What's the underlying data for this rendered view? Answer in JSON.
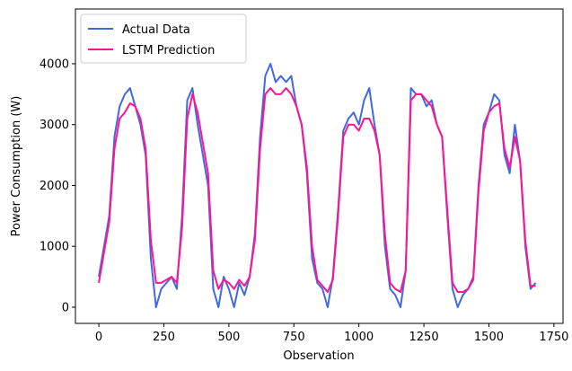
{
  "chart_data": {
    "type": "line",
    "xlabel": "Observation",
    "ylabel": "Power Consumption (W)",
    "x": [
      0,
      20,
      40,
      60,
      80,
      100,
      120,
      140,
      160,
      180,
      200,
      220,
      240,
      260,
      280,
      300,
      320,
      340,
      360,
      380,
      400,
      420,
      440,
      460,
      480,
      500,
      520,
      540,
      560,
      580,
      600,
      620,
      640,
      660,
      680,
      700,
      720,
      740,
      760,
      780,
      800,
      820,
      840,
      860,
      880,
      900,
      920,
      940,
      960,
      980,
      1000,
      1020,
      1040,
      1060,
      1080,
      1100,
      1120,
      1140,
      1160,
      1180,
      1200,
      1220,
      1240,
      1260,
      1280,
      1300,
      1320,
      1340,
      1360,
      1380,
      1400,
      1420,
      1440,
      1460,
      1480,
      1500,
      1520,
      1540,
      1560,
      1580,
      1600,
      1620,
      1640,
      1660,
      1680
    ],
    "series": [
      {
        "name": "Actual Data",
        "color": "#4169e1",
        "values": [
          500,
          1000,
          1500,
          2800,
          3300,
          3500,
          3600,
          3300,
          3000,
          2500,
          800,
          0,
          300,
          400,
          500,
          300,
          1500,
          3400,
          3600,
          3000,
          2500,
          2000,
          300,
          0,
          500,
          300,
          0,
          400,
          200,
          500,
          1200,
          2800,
          3800,
          4000,
          3700,
          3800,
          3700,
          3800,
          3300,
          3000,
          2200,
          800,
          400,
          300,
          0,
          500,
          1600,
          2900,
          3100,
          3200,
          3000,
          3400,
          3600,
          3000,
          2500,
          1000,
          300,
          200,
          0,
          600,
          3600,
          3500,
          3500,
          3300,
          3400,
          3000,
          2800,
          1500,
          300,
          0,
          200,
          300,
          500,
          2000,
          3000,
          3200,
          3500,
          3400,
          2500,
          2200,
          3000,
          2400,
          1000,
          300,
          400
        ]
      },
      {
        "name": "LSTM Prediction",
        "color": "#ff1493",
        "values": [
          400,
          900,
          1400,
          2600,
          3100,
          3200,
          3350,
          3300,
          3100,
          2600,
          1100,
          400,
          400,
          450,
          500,
          400,
          1300,
          3100,
          3500,
          3200,
          2700,
          2200,
          600,
          300,
          450,
          400,
          300,
          450,
          350,
          500,
          1100,
          2600,
          3500,
          3600,
          3500,
          3500,
          3600,
          3500,
          3300,
          3000,
          2300,
          1000,
          450,
          350,
          250,
          450,
          1500,
          2800,
          3000,
          3000,
          2900,
          3100,
          3100,
          2900,
          2500,
          1200,
          400,
          300,
          250,
          600,
          3400,
          3500,
          3500,
          3400,
          3300,
          3000,
          2800,
          1600,
          400,
          250,
          250,
          300,
          450,
          1900,
          2900,
          3200,
          3300,
          3350,
          2600,
          2300,
          2800,
          2400,
          1100,
          350,
          350
        ]
      }
    ],
    "xlim": [
      -90,
      1785
    ],
    "xticks": [
      0,
      250,
      500,
      750,
      1000,
      1250,
      1500,
      1750
    ],
    "ylim": [
      -266,
      4900
    ],
    "yticks": [
      0,
      1000,
      2000,
      3000,
      4000
    ],
    "legend": "upper left",
    "grid": false
  }
}
